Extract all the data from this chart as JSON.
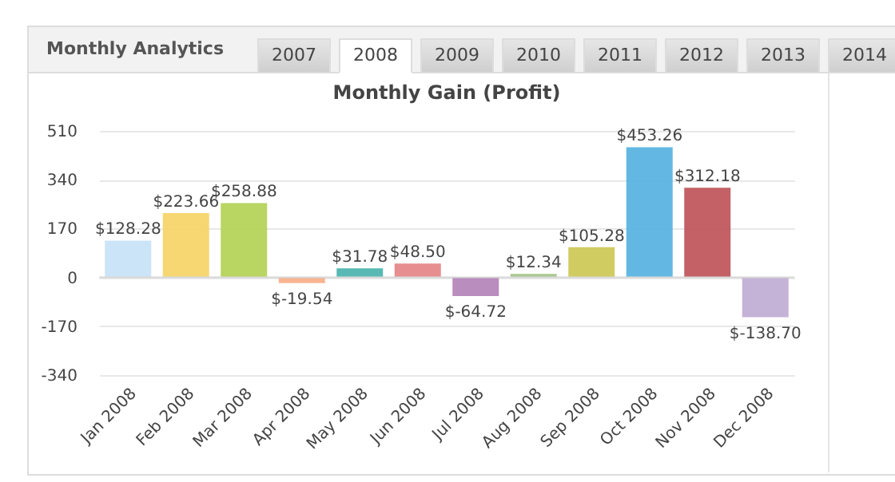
{
  "chart_data": {
    "type": "bar",
    "title": "Monthly Gain (Profit)",
    "categories": [
      "Jan 2008",
      "Feb 2008",
      "Mar 2008",
      "Apr 2008",
      "May 2008",
      "Jun 2008",
      "Jul 2008",
      "Aug 2008",
      "Sep 2008",
      "Oct 2008",
      "Nov 2008",
      "Dec 2008"
    ],
    "values": [
      128.28,
      223.66,
      258.88,
      -19.54,
      31.78,
      48.5,
      -64.72,
      12.34,
      105.28,
      453.26,
      312.18,
      -138.7
    ],
    "value_labels": [
      "$128.28",
      "$223.66",
      "$258.88",
      "$-19.54",
      "$31.78",
      "$48.50",
      "$-64.72",
      "$12.34",
      "$105.28",
      "$453.26",
      "$312.18",
      "$-138.70"
    ],
    "colors": [
      "#c9e3f7",
      "#f7d56a",
      "#b5d35a",
      "#f8b08a",
      "#4fb5b0",
      "#e5888a",
      "#b587b9",
      "#a5c58a",
      "#cfc95a",
      "#5ab4e2",
      "#c0585f",
      "#c2aed5"
    ],
    "ylim": [
      -340,
      510
    ],
    "yticks": [
      -340,
      -170,
      0,
      170,
      340,
      510
    ],
    "grid": "y",
    "annotations": [
      "Monthly Analytics",
      "2007",
      "2008",
      "2009",
      "2010",
      "2011",
      "2012",
      "2013",
      "2014"
    ]
  }
}
